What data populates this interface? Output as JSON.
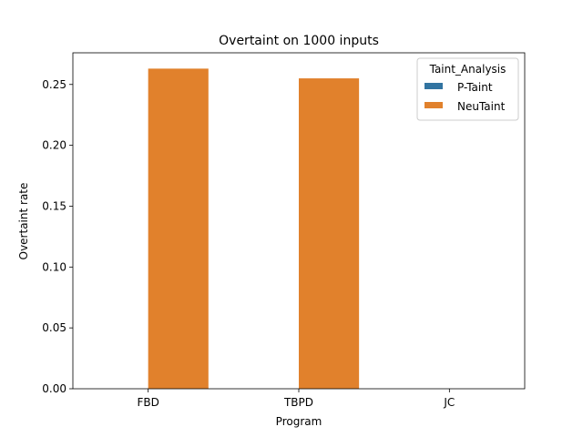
{
  "chart_data": {
    "type": "bar",
    "title": "Overtaint on 1000 inputs",
    "xlabel": "Program",
    "ylabel": "Overtaint rate",
    "categories": [
      "FBD",
      "TBPD",
      "JC"
    ],
    "series": [
      {
        "name": "P-Taint",
        "color": "#3274a1",
        "values": [
          0.0,
          0.0,
          0.0
        ]
      },
      {
        "name": "NeuTaint",
        "color": "#e1812c",
        "values": [
          0.263,
          0.255,
          0.0
        ]
      }
    ],
    "ylim": [
      0,
      0.276
    ],
    "yticks": [
      "0.00",
      "0.05",
      "0.10",
      "0.15",
      "0.20",
      "0.25"
    ],
    "legend": {
      "title": "Taint_Analysis",
      "placement": "top-right"
    },
    "grid": false
  }
}
